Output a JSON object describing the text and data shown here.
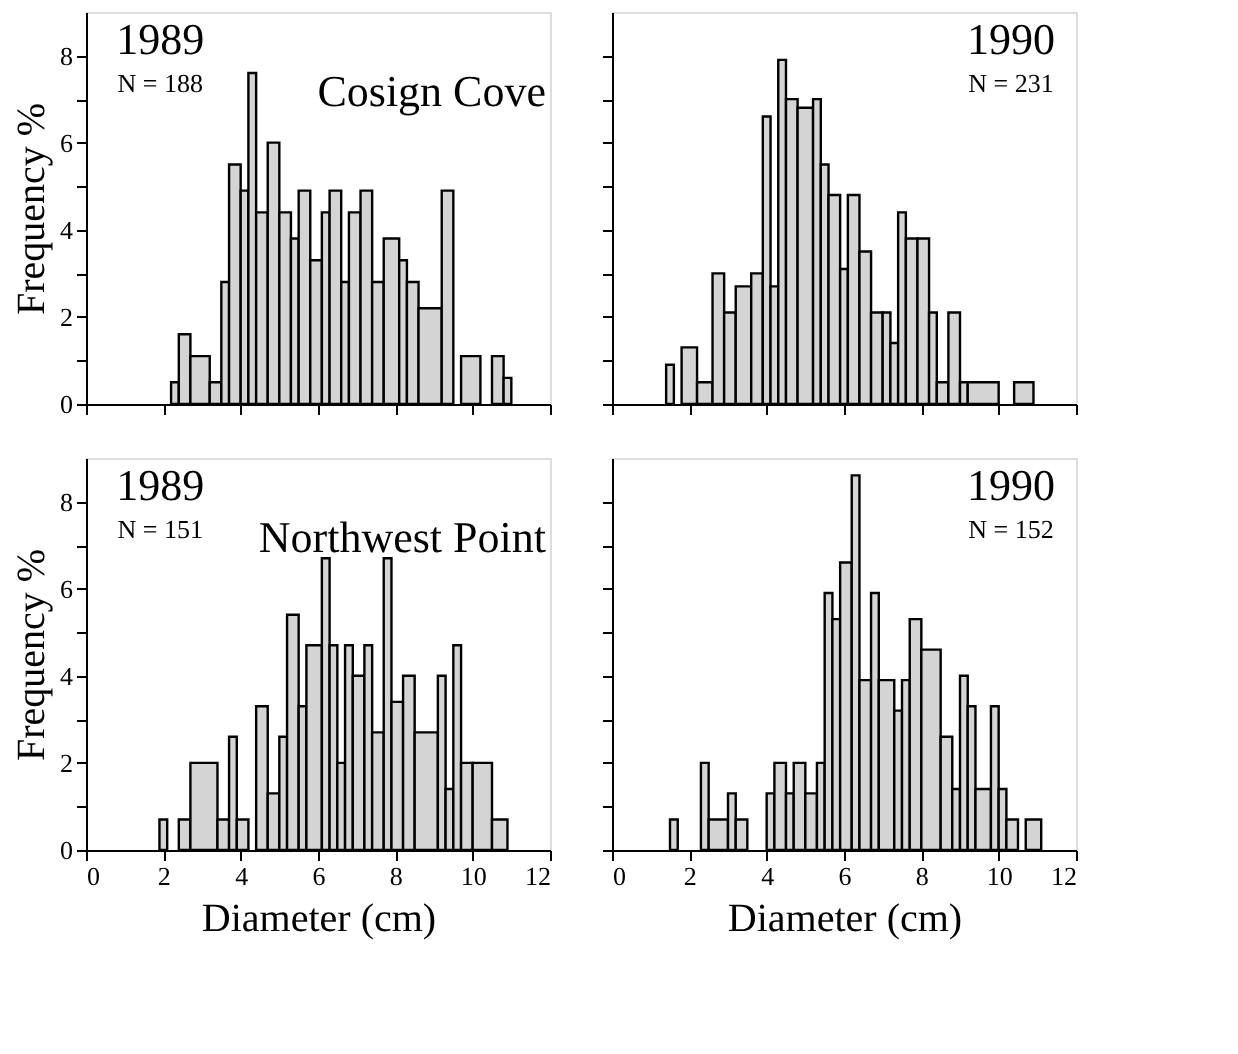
{
  "chart_data": [
    {
      "type": "histogram",
      "ylabel": "Frequency %",
      "annotations": [
        "1989",
        "N = 188",
        "Cosign Cove"
      ],
      "color": "#d4d4d4",
      "tick_labels": "y",
      "grid": false,
      "bins": [
        2.2,
        2.4,
        2.7,
        3.2,
        3.5,
        3.7,
        4.0,
        4.2,
        4.4,
        4.7,
        5.0,
        5.3,
        5.5,
        5.8,
        6.1,
        6.3,
        6.6,
        6.8,
        7.1,
        7.4,
        7.7,
        8.1,
        8.3,
        8.6,
        9.2,
        9.5,
        9.7,
        10.2,
        10.5,
        10.8,
        11.0
      ],
      "values": [
        0.5,
        1.6,
        1.1,
        0.5,
        2.8,
        5.5,
        4.9,
        7.6,
        4.4,
        6.0,
        4.4,
        3.8,
        4.9,
        3.3,
        4.4,
        4.9,
        2.8,
        4.4,
        4.9,
        2.8,
        3.8,
        3.3,
        2.8,
        2.2,
        4.9,
        0,
        1.1,
        0,
        1.1,
        0.6
      ],
      "xlim": [
        0,
        12
      ],
      "xticks": [
        0,
        2,
        4,
        6,
        8,
        10,
        12
      ],
      "ylim": [
        0,
        9
      ],
      "yticks": [
        0,
        {
          "value": 1,
          "label": null
        },
        2,
        {
          "value": 3,
          "label": null
        },
        4,
        {
          "value": 5,
          "label": null
        },
        6,
        {
          "value": 7,
          "label": null
        },
        8
      ]
    },
    {
      "type": "histogram",
      "annotations": [
        "1990",
        "N = 231"
      ],
      "color": "#d4d4d4",
      "tick_labels": false,
      "grid": false,
      "bins": [
        1.4,
        1.6,
        1.8,
        2.2,
        2.6,
        2.9,
        3.2,
        3.6,
        3.9,
        4.1,
        4.3,
        4.5,
        4.8,
        5.2,
        5.4,
        5.6,
        5.9,
        6.1,
        6.4,
        6.7,
        7.0,
        7.2,
        7.4,
        7.6,
        7.9,
        8.2,
        8.4,
        8.7,
        9.0,
        9.2,
        10.0,
        10.4,
        10.9
      ],
      "values": [
        0.9,
        0,
        1.3,
        0.5,
        3.0,
        2.1,
        2.7,
        3.0,
        6.6,
        2.7,
        7.9,
        7.0,
        6.8,
        7.0,
        5.5,
        4.8,
        3.1,
        4.8,
        3.5,
        2.1,
        2.1,
        1.4,
        4.4,
        3.8,
        3.8,
        2.1,
        0.5,
        2.1,
        0.5,
        0.5,
        0,
        0.5
      ],
      "xlim": [
        0,
        12
      ],
      "xticks": [
        0,
        2,
        4,
        6,
        8,
        10,
        12
      ],
      "ylim": [
        0,
        9
      ],
      "yticks": [
        0,
        1,
        2,
        3,
        4,
        5,
        6,
        7,
        8
      ]
    },
    {
      "type": "histogram",
      "xlabel": "Diameter (cm)",
      "ylabel": "Frequency %",
      "annotations": [
        "1989",
        "N = 151",
        "Northwest Point"
      ],
      "color": "#d4d4d4",
      "grid": false,
      "bins": [
        1.9,
        2.1,
        2.4,
        2.7,
        3.4,
        3.7,
        3.9,
        4.2,
        4.4,
        4.7,
        5.0,
        5.2,
        5.5,
        5.7,
        6.1,
        6.3,
        6.5,
        6.7,
        6.9,
        7.2,
        7.4,
        7.7,
        7.9,
        8.2,
        8.5,
        9.1,
        9.3,
        9.5,
        9.7,
        10.0,
        10.5,
        10.9
      ],
      "values": [
        0.7,
        0,
        0.7,
        2.0,
        0.7,
        2.6,
        0.7,
        0,
        3.3,
        1.3,
        2.6,
        5.4,
        3.3,
        4.7,
        6.7,
        4.7,
        2.0,
        4.7,
        4.0,
        4.7,
        2.7,
        6.7,
        3.4,
        4.0,
        2.7,
        4.0,
        1.4,
        4.7,
        2.0,
        2.0,
        0.7
      ],
      "xlim": [
        0,
        12
      ],
      "xticks": [
        0,
        2,
        4,
        6,
        8,
        10,
        12
      ],
      "ylim": [
        0,
        9
      ],
      "yticks": [
        0,
        {
          "value": 1,
          "label": null
        },
        2,
        {
          "value": 3,
          "label": null
        },
        4,
        {
          "value": 5,
          "label": null
        },
        6,
        {
          "value": 7,
          "label": null
        },
        8
      ]
    },
    {
      "type": "histogram",
      "xlabel": "Diameter (cm)",
      "annotations": [
        "1990",
        "N = 152"
      ],
      "color": "#d4d4d4",
      "tick_labels": "x",
      "grid": false,
      "bins": [
        1.5,
        1.7,
        2.3,
        2.5,
        3.0,
        3.2,
        3.5,
        4.0,
        4.2,
        4.5,
        4.7,
        5.0,
        5.3,
        5.5,
        5.7,
        5.9,
        6.2,
        6.4,
        6.7,
        6.9,
        7.3,
        7.5,
        7.7,
        8.0,
        8.5,
        8.8,
        9.0,
        9.2,
        9.4,
        9.8,
        10.0,
        10.2,
        10.5,
        10.7,
        11.1
      ],
      "values": [
        0.7,
        0,
        2.0,
        0.7,
        1.3,
        0.7,
        0,
        1.3,
        2.0,
        1.3,
        2.0,
        1.3,
        2.0,
        5.9,
        5.3,
        6.6,
        8.6,
        3.9,
        5.9,
        3.9,
        3.2,
        3.9,
        5.3,
        4.6,
        2.6,
        1.4,
        4.0,
        3.3,
        1.4,
        3.3,
        1.4,
        0.7,
        0,
        0.7
      ],
      "xlim": [
        0,
        12
      ],
      "xticks": [
        0,
        2,
        4,
        6,
        8,
        10,
        12
      ],
      "ylim": [
        0,
        9
      ],
      "yticks": [
        0,
        1,
        2,
        3,
        4,
        5,
        6,
        7,
        8
      ]
    }
  ]
}
